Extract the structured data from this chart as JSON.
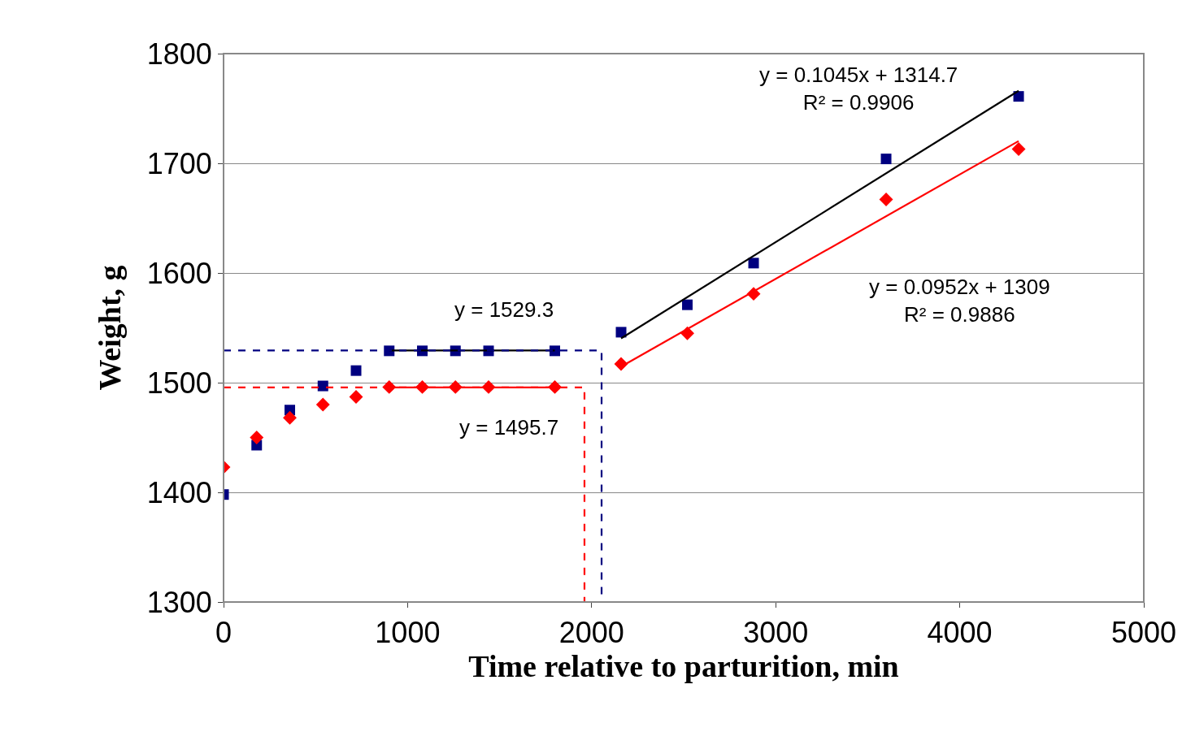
{
  "chart_data": {
    "type": "scatter",
    "xlabel": "Time relative to parturition, min",
    "ylabel": "Weight, g",
    "xlim": [
      0,
      5000
    ],
    "xticks": [
      0,
      1000,
      2000,
      3000,
      4000,
      5000
    ],
    "ylim": [
      1300,
      1800
    ],
    "yticks": [
      1300,
      1400,
      1500,
      1600,
      1700,
      1800
    ],
    "grid": "y",
    "series": [
      {
        "marker": "square",
        "color": "#000080",
        "x": [
          0,
          180,
          360,
          540,
          720,
          900,
          1080,
          1260,
          1440,
          1800,
          2160,
          2520,
          2880,
          3600,
          4320
        ],
        "values": [
          1398,
          1443,
          1475,
          1497,
          1511,
          1529,
          1529,
          1529,
          1529,
          1529,
          1546,
          1571,
          1609,
          1704,
          1761
        ]
      },
      {
        "marker": "diamond",
        "color": "#ff0000",
        "x": [
          0,
          180,
          360,
          540,
          720,
          900,
          1080,
          1260,
          1440,
          1800,
          2160,
          2520,
          2880,
          3600,
          4320
        ],
        "values": [
          1423,
          1450,
          1468,
          1480,
          1487,
          1496,
          1496,
          1496,
          1496,
          1496,
          1517,
          1545,
          1581,
          1667,
          1713
        ]
      },
      {
        "type": "line",
        "line_style": "solid",
        "color": "#000000",
        "x": [
          2160,
          4320
        ],
        "values": [
          1540.4,
          1766.1
        ]
      },
      {
        "type": "line",
        "line_style": "solid",
        "color": "#ff0000",
        "x": [
          2160,
          4320
        ],
        "values": [
          1514.6,
          1720.3
        ]
      },
      {
        "type": "line",
        "line_style": "solid",
        "color": "#000000",
        "x": [
          900,
          1800
        ],
        "values": [
          1529.3,
          1529.3
        ]
      },
      {
        "type": "line",
        "line_style": "solid",
        "color": "#ff0000",
        "x": [
          900,
          1800
        ],
        "values": [
          1495.7,
          1495.7
        ]
      },
      {
        "type": "line",
        "line_style": "dashed",
        "color": "#000080",
        "x": [
          0,
          2054,
          2054
        ],
        "values": [
          1529.3,
          1529.3,
          1300
        ]
      },
      {
        "type": "line",
        "line_style": "dashed",
        "color": "#ff0000",
        "x": [
          0,
          1961,
          1961
        ],
        "values": [
          1495.7,
          1495.7,
          1300
        ]
      }
    ],
    "annotations": [
      "y = 0.1045x + 1314.7\nR² = 0.9906",
      "y = 0.0952x + 1309\nR² = 0.9886",
      "y = 1529.3",
      "y = 1495.7"
    ]
  }
}
